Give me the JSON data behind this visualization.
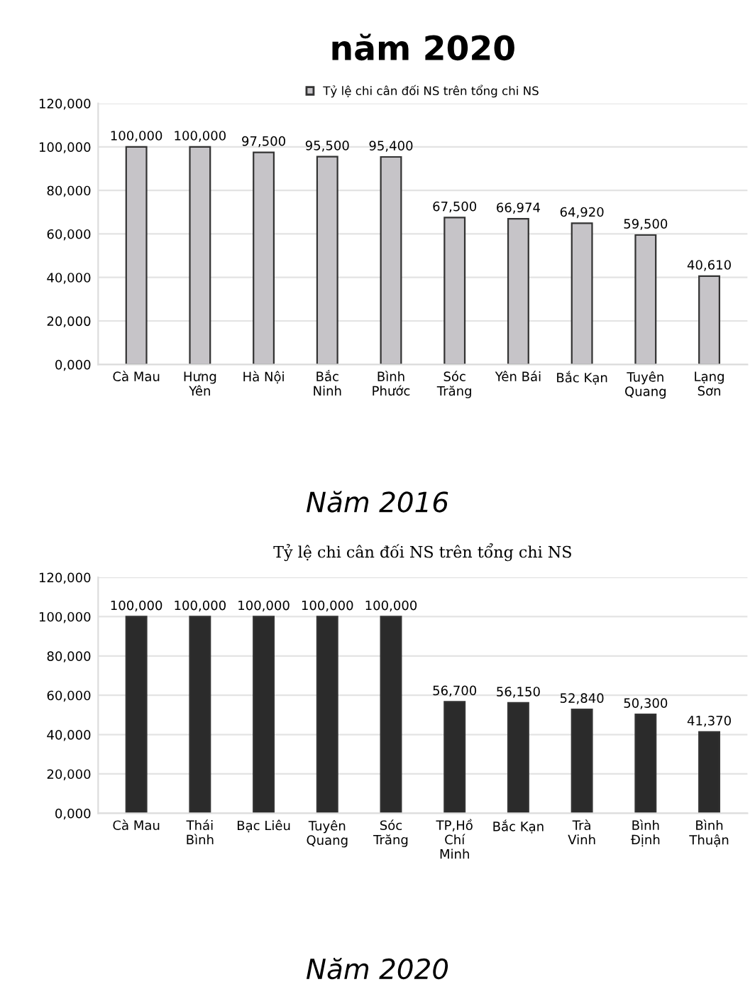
{
  "chart_data": [
    {
      "type": "bar",
      "title": "năm 2020",
      "legend": "top",
      "categories": [
        "Cà Mau",
        "Hưng\nYên",
        "Hà Nội",
        "Bắc\nNinh",
        "Bình\nPhước",
        "Sóc\nTrăng",
        "Yên Bái",
        "Bắc Kạn",
        "Tuyên\nQuang",
        "Lạng\nSơn"
      ],
      "series": [
        {
          "name": "Tỷ lệ chi cân đối NS trên tổng chi NS",
          "color": "#c6c4c8",
          "values": [
            100,
            100,
            97.5,
            95.5,
            95.4,
            67.5,
            66.974,
            64.92,
            59.5,
            40.61
          ],
          "value_labels": [
            "100,000",
            "100,000",
            "97,500",
            "95,500",
            "95,400",
            "67,500",
            "66,974",
            "64,920",
            "59,500",
            "40,610"
          ]
        }
      ],
      "ylim": [
        0,
        120
      ],
      "yticks": [
        {
          "value": 0,
          "label": "0,000"
        },
        {
          "value": 20,
          "label": "20,000"
        },
        {
          "value": 40,
          "label": "40,000"
        },
        {
          "value": 60,
          "label": "60,000"
        },
        {
          "value": 80,
          "label": "80,000"
        },
        {
          "value": 100,
          "label": "100,000"
        },
        {
          "value": 120,
          "label": "120,000"
        }
      ],
      "grid": "y",
      "annotations": [
        "Năm 2016"
      ]
    },
    {
      "type": "bar",
      "title": "Tỷ lệ chi cân đối NS trên tổng chi NS",
      "categories": [
        "Cà Mau",
        "Thái\nBình",
        "Bạc Liêu",
        "Tuyên\nQuang",
        "Sóc\nTrăng",
        "TP,Hồ\nChí\nMinh",
        "Bắc Kạn",
        "Trà\nVinh",
        "Bình\nĐịnh",
        "Bình\nThuận"
      ],
      "series": [
        {
          "color": "#2b2b2b",
          "values": [
            100,
            100,
            100,
            100,
            100,
            56.7,
            56.15,
            52.84,
            50.3,
            41.37
          ],
          "value_labels": [
            "100,000",
            "100,000",
            "100,000",
            "100,000",
            "100,000",
            "56,700",
            "56,150",
            "52,840",
            "50,300",
            "41,370"
          ]
        }
      ],
      "ylim": [
        0,
        120
      ],
      "yticks": [
        {
          "value": 0,
          "label": "0,000"
        },
        {
          "value": 20,
          "label": "20,000"
        },
        {
          "value": 40,
          "label": "40,000"
        },
        {
          "value": 60,
          "label": "60,000"
        },
        {
          "value": 80,
          "label": "80,000"
        },
        {
          "value": 100,
          "label": "100,000"
        },
        {
          "value": 120,
          "label": "120,000"
        }
      ],
      "grid": "y",
      "annotations": [
        "Năm 2020"
      ]
    }
  ]
}
